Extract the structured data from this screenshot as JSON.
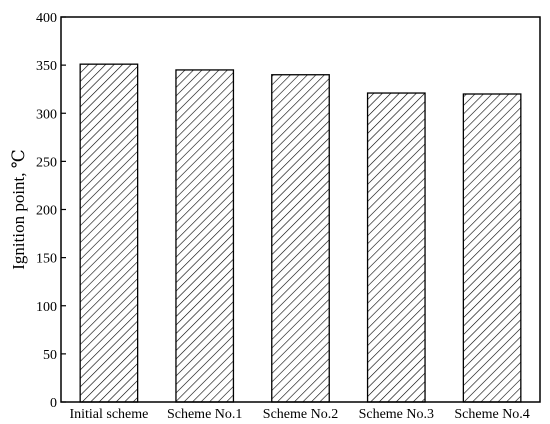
{
  "chart_data": {
    "type": "bar",
    "title": "",
    "xlabel": "",
    "ylabel": "Ignition point, ℃",
    "categories": [
      "Initial scheme",
      "Scheme No.1",
      "Scheme No.2",
      "Scheme No.3",
      "Scheme No.4"
    ],
    "values": [
      351,
      345,
      340,
      321,
      320
    ],
    "ylim": [
      0,
      400
    ],
    "yticks": [
      0,
      50,
      100,
      150,
      200,
      250,
      300,
      350,
      400
    ],
    "grid": false,
    "legend": "none",
    "bar_fill": "diagonal hatch",
    "colors": {
      "bar_stroke": "#000000",
      "hatch": "#000000",
      "background": "#ffffff"
    }
  }
}
